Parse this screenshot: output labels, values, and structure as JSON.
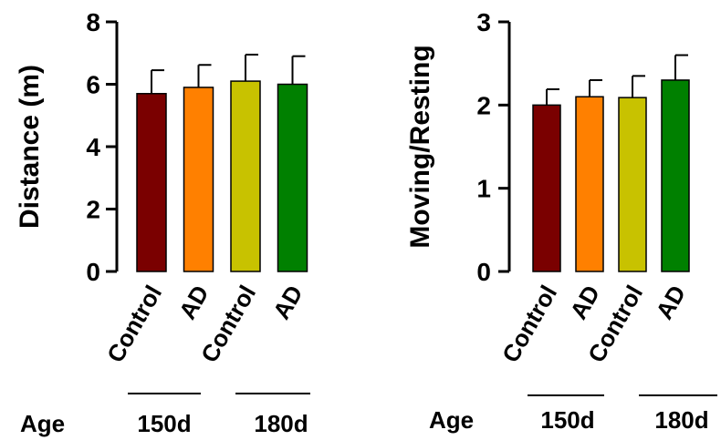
{
  "age_label": "Age",
  "chart_data": [
    {
      "type": "bar",
      "ylabel": "Distance (m)",
      "ylim": [
        0,
        8
      ],
      "yticks": [
        "0",
        "2",
        "4",
        "6",
        "8"
      ],
      "categories": [
        "Control",
        "AD",
        "Control",
        "AD"
      ],
      "values": [
        5.7,
        5.9,
        6.1,
        6.0
      ],
      "errors": [
        0.75,
        0.72,
        0.85,
        0.9
      ],
      "colors": [
        "#7a0000",
        "#ff8000",
        "#c8c200",
        "#008000"
      ],
      "groups": [
        "150d",
        "180d"
      ]
    },
    {
      "type": "bar",
      "ylabel": "Moving/Resting",
      "ylim": [
        0,
        3
      ],
      "yticks": [
        "0",
        "1",
        "2",
        "3"
      ],
      "categories": [
        "Control",
        "AD",
        "Control",
        "AD"
      ],
      "values": [
        2.0,
        2.1,
        2.09,
        2.3
      ],
      "errors": [
        0.19,
        0.2,
        0.26,
        0.3
      ],
      "colors": [
        "#7a0000",
        "#ff8000",
        "#c8c200",
        "#008000"
      ],
      "groups": [
        "150d",
        "180d"
      ]
    }
  ]
}
